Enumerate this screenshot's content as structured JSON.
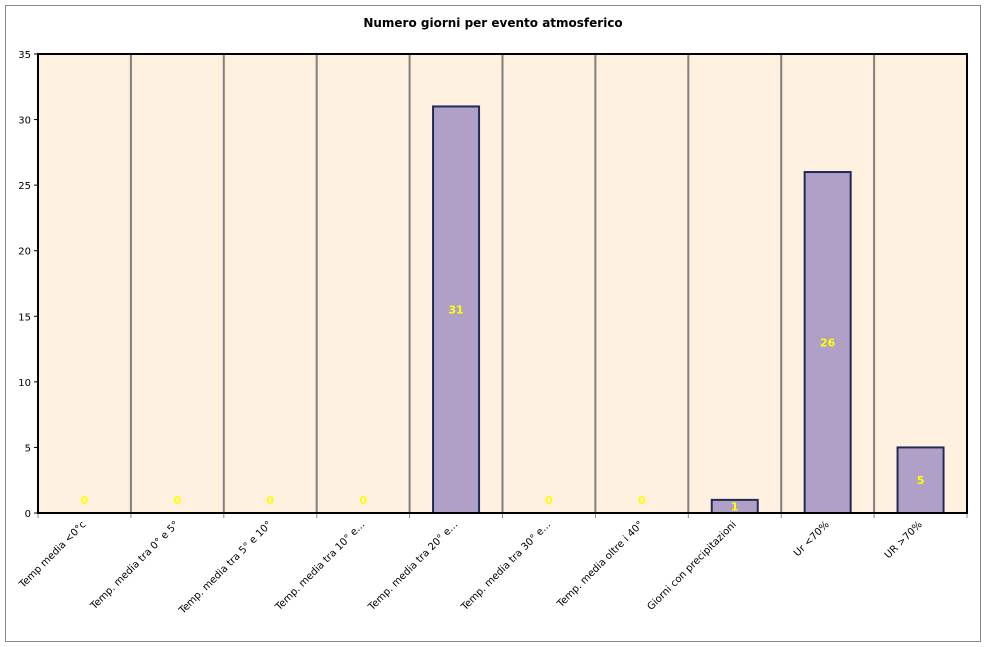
{
  "chart_data": {
    "type": "bar",
    "title": "Numero giorni per evento atmosferico",
    "xlabel": "",
    "ylabel": "",
    "ylim": [
      0,
      35
    ],
    "yticks": [
      0,
      5,
      10,
      15,
      20,
      25,
      30,
      35
    ],
    "grid": "vertical",
    "legend": "none",
    "categories": [
      "Temp media <0°c",
      "Temp. media tra 0° e 5°",
      "Temp. media tra 5° e 10°",
      "Temp. media tra 10° e...",
      "Temp. media tra 20° e...",
      "Temp. media tra 30° e...",
      "Temp. media oltre i 40°",
      "Giorni con precipitazioni",
      "Ur  <70%",
      "UR >70%"
    ],
    "values": [
      0,
      0,
      0,
      0,
      31,
      0,
      0,
      1,
      26,
      5
    ],
    "colors": {
      "bar": "#b0a0c8",
      "bar_border": "#1f2d55",
      "plot_bg": "#fff0e0",
      "label": "#ffff00",
      "grid": "#808080"
    }
  }
}
